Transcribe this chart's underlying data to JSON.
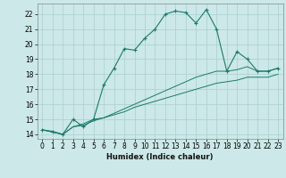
{
  "title": "",
  "xlabel": "Humidex (Indice chaleur)",
  "bg_color": "#cce8e8",
  "grid_color": "#aacfcf",
  "line_color": "#1a7a6a",
  "xlim": [
    -0.5,
    23.5
  ],
  "ylim": [
    13.7,
    22.7
  ],
  "yticks": [
    14,
    15,
    16,
    17,
    18,
    19,
    20,
    21,
    22
  ],
  "xticks": [
    0,
    1,
    2,
    3,
    4,
    5,
    6,
    7,
    8,
    9,
    10,
    11,
    12,
    13,
    14,
    15,
    16,
    17,
    18,
    19,
    20,
    21,
    22,
    23
  ],
  "series1_x": [
    0,
    1,
    2,
    3,
    4,
    5,
    6,
    7,
    8,
    9,
    10,
    11,
    12,
    13,
    14,
    15,
    16,
    17,
    18,
    19,
    20,
    21,
    22,
    23
  ],
  "series1_y": [
    14.3,
    14.2,
    14.0,
    15.0,
    14.5,
    15.0,
    17.3,
    18.4,
    19.7,
    19.6,
    20.4,
    21.0,
    22.0,
    22.2,
    22.1,
    21.4,
    22.3,
    21.0,
    18.2,
    19.5,
    19.0,
    18.2,
    18.2,
    18.4
  ],
  "series2_x": [
    0,
    2,
    3,
    4,
    5,
    6,
    7,
    8,
    9,
    10,
    11,
    12,
    13,
    14,
    15,
    16,
    17,
    18,
    19,
    20,
    21,
    22,
    23
  ],
  "series2_y": [
    14.3,
    14.0,
    14.5,
    14.6,
    14.9,
    15.1,
    15.4,
    15.7,
    16.0,
    16.3,
    16.6,
    16.9,
    17.2,
    17.5,
    17.8,
    18.0,
    18.2,
    18.2,
    18.3,
    18.5,
    18.2,
    18.2,
    18.4
  ],
  "series3_x": [
    0,
    2,
    3,
    4,
    5,
    6,
    7,
    8,
    9,
    10,
    11,
    12,
    13,
    14,
    15,
    16,
    17,
    18,
    19,
    20,
    21,
    22,
    23
  ],
  "series3_y": [
    14.3,
    14.0,
    14.5,
    14.7,
    15.0,
    15.1,
    15.3,
    15.5,
    15.8,
    16.0,
    16.2,
    16.4,
    16.6,
    16.8,
    17.0,
    17.2,
    17.4,
    17.5,
    17.6,
    17.8,
    17.8,
    17.8,
    18.0
  ]
}
